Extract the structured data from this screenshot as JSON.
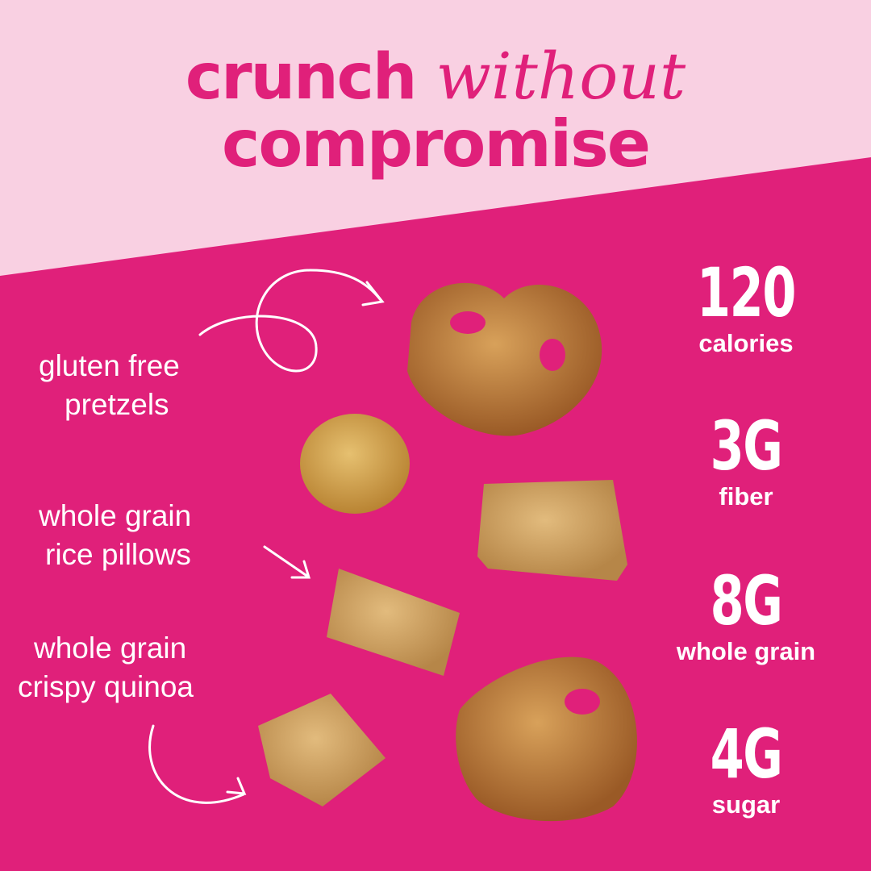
{
  "colors": {
    "background_light": "#f9d0e2",
    "background_magenta": "#e0207a",
    "text": "#ffffff"
  },
  "headline": {
    "word1": "crunch",
    "word2": "without",
    "line2": "compromise"
  },
  "ingredients": [
    {
      "line1": "gluten free",
      "line2": "pretzels"
    },
    {
      "line1": "whole grain",
      "line2": "rice pillows"
    },
    {
      "line1": "whole grain",
      "line2": "crispy quinoa"
    }
  ],
  "stats": [
    {
      "value": "120",
      "unit": "calories"
    },
    {
      "value": "3G",
      "unit": "fiber"
    },
    {
      "value": "8G",
      "unit": "whole grain"
    },
    {
      "value": "4G",
      "unit": "sugar"
    }
  ]
}
